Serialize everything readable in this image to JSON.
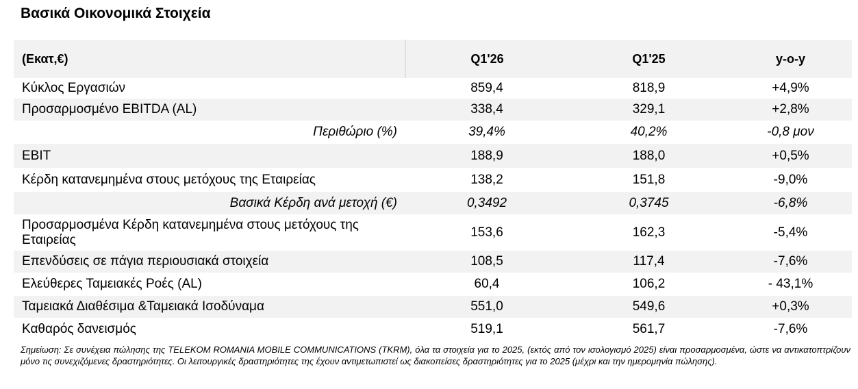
{
  "header": {
    "title": "Βασικά Οικονομικά Στοιχεία"
  },
  "table": {
    "columns": [
      "(Εκατ,€)",
      "Q1'26",
      "Q1'25",
      "y-o-y"
    ],
    "rows": [
      [
        "Κύκλος Εργασιών",
        "859,4",
        "818,9",
        "+4,9%"
      ],
      [
        "Προσαρμοσμένο EBITDA (AL)",
        "338,4",
        "329,1",
        "+2,8%"
      ],
      [
        "Περιθώριο (%)",
        "39,4%",
        "40,2%",
        "-0,8 μον"
      ],
      [
        "EBIT",
        "188,9",
        "188,0",
        "+0,5%"
      ],
      [
        "Κέρδη κατανεμημένα στους μετόχους της Εταιρείας",
        "138,2",
        "151,8",
        "-9,0%"
      ],
      [
        "Βασικά Κέρδη ανά μετοχή (€)",
        "0,3492",
        "0,3745",
        "-6,8%"
      ],
      [
        "Προσαρμοσμένα Κέρδη κατανεμημένα στους μετόχους της Εταιρείας",
        "153,6",
        "162,3",
        "-5,4%"
      ],
      [
        "Επενδύσεις σε πάγια περιουσιακά στοιχεία",
        "108,5",
        "117,4",
        "-7,6%"
      ],
      [
        "Ελεύθερες Ταμειακές Ροές (AL)",
        "60,4",
        "106,2",
        "- 43,1%"
      ],
      [
        "Ταμειακά Διαθέσιμα &Ταμειακά Ισοδύναμα",
        "551,0",
        "549,6",
        "+0,3%"
      ],
      [
        "Καθαρός δανεισμός",
        "519,1",
        "561,7",
        "-7,6%"
      ]
    ]
  },
  "note": "Σημείωση: Σε συνέχεια πώλησης της TELEKOM ROMANIA MOBILE COMMUNICATIONS (TKRM), όλα τα στοιχεία  για το 2025, (εκτός από τον ισολογισμό 2025) είναι προσαρμοσμένα, ώστε να αντικατοπτρίζουν μόνο τις συνεχιζόμενες δραστηριότητες. Οι λειτουργικές δραστηριότητες της έχουν αντιμετωπιστεί ως διακοπείσες δραστηριότητες  για το 2025 (μέχρι και την ημερομηνία πώλησης)."
}
